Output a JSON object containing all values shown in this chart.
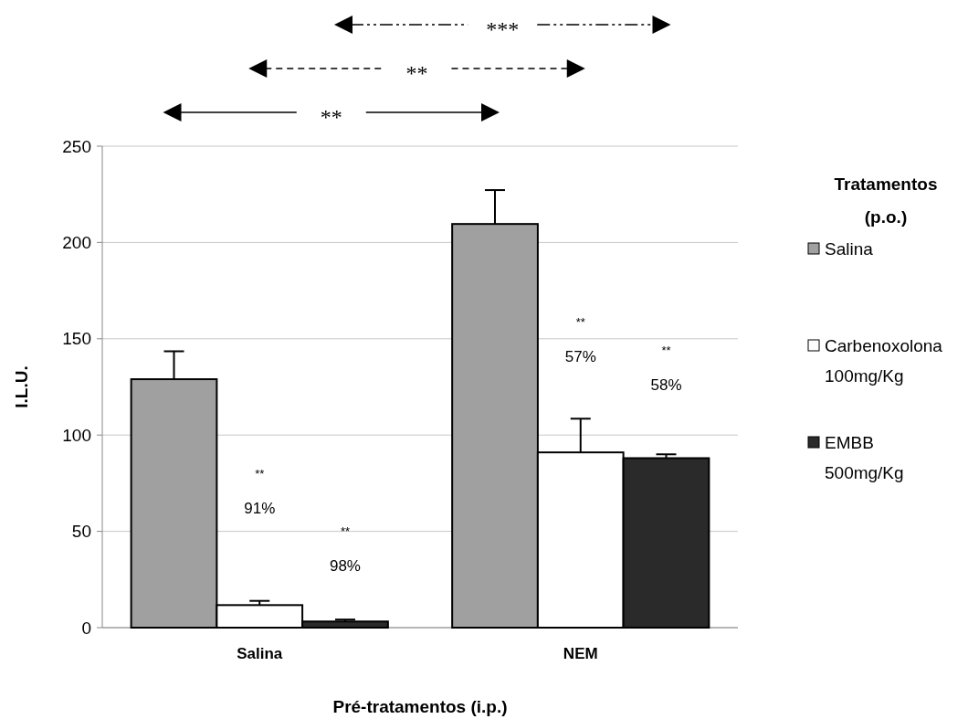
{
  "chart_data": {
    "type": "bar",
    "xlabel": "Pré-tratamentos (i.p.)",
    "ylabel": "I.L.U.",
    "legend_title": "Tratamentos\n(p.o.)",
    "categories": [
      "Salina",
      "NEM"
    ],
    "series": [
      {
        "name": "Salina",
        "color": "#a0a0a0",
        "values": [
          129,
          209.6
        ],
        "errors": [
          14.5,
          17.6
        ]
      },
      {
        "name": "Carbenoxolona\n100mg/Kg",
        "color": "#ffffff",
        "values": [
          11.7,
          91
        ],
        "errors": [
          2.2,
          17.5
        ]
      },
      {
        "name": "EMBB\n500mg/Kg",
        "color": "#2a2a2a",
        "values": [
          3.2,
          88
        ],
        "errors": [
          1,
          2
        ]
      }
    ],
    "ylim": [
      0,
      250
    ],
    "yticks": [
      0,
      50,
      100,
      150,
      200,
      250
    ],
    "grid": "y",
    "legend": "right",
    "annotations": [
      "**",
      "**",
      "***",
      "$^{**}$\n91%",
      "$^{**}$\n98%",
      "$^{**}$\n57%",
      "$^{**}$\n58%"
    ]
  }
}
